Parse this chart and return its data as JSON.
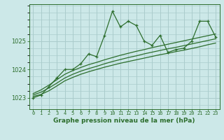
{
  "title": "Graphe pression niveau de la mer (hPa)",
  "bg_color": "#cce8e8",
  "grid_color": "#aacccc",
  "line_color": "#2d6e2d",
  "x_labels": [
    "0",
    "1",
    "2",
    "3",
    "4",
    "5",
    "6",
    "7",
    "8",
    "9",
    "10",
    "11",
    "12",
    "13",
    "14",
    "15",
    "16",
    "17",
    "18",
    "19",
    "20",
    "21",
    "22",
    "23"
  ],
  "xlim": [
    -0.5,
    23.5
  ],
  "ylim": [
    1022.6,
    1026.3
  ],
  "yticks": [
    1023,
    1024,
    1025
  ],
  "main_line": [
    1023.0,
    1023.1,
    1023.4,
    1023.7,
    1024.0,
    1024.0,
    1024.2,
    1024.55,
    1024.45,
    1025.2,
    1026.05,
    1025.5,
    1025.7,
    1025.55,
    1025.0,
    1024.85,
    1025.2,
    1024.6,
    1024.7,
    1024.75,
    1025.0,
    1025.7,
    1025.7,
    1025.15
  ],
  "line2": [
    1023.05,
    1023.12,
    1023.25,
    1023.42,
    1023.6,
    1023.72,
    1023.83,
    1023.92,
    1024.0,
    1024.08,
    1024.15,
    1024.22,
    1024.28,
    1024.34,
    1024.4,
    1024.46,
    1024.52,
    1024.57,
    1024.63,
    1024.68,
    1024.74,
    1024.8,
    1024.87,
    1024.93
  ],
  "line3": [
    1023.1,
    1023.2,
    1023.35,
    1023.52,
    1023.7,
    1023.83,
    1023.94,
    1024.03,
    1024.11,
    1024.2,
    1024.28,
    1024.35,
    1024.42,
    1024.48,
    1024.55,
    1024.61,
    1024.67,
    1024.73,
    1024.78,
    1024.84,
    1024.9,
    1024.96,
    1025.02,
    1025.08
  ],
  "line4": [
    1023.15,
    1023.28,
    1023.45,
    1023.64,
    1023.83,
    1023.96,
    1024.07,
    1024.17,
    1024.25,
    1024.34,
    1024.42,
    1024.5,
    1024.57,
    1024.64,
    1024.7,
    1024.77,
    1024.83,
    1024.89,
    1024.95,
    1025.01,
    1025.07,
    1025.13,
    1025.19,
    1025.25
  ]
}
